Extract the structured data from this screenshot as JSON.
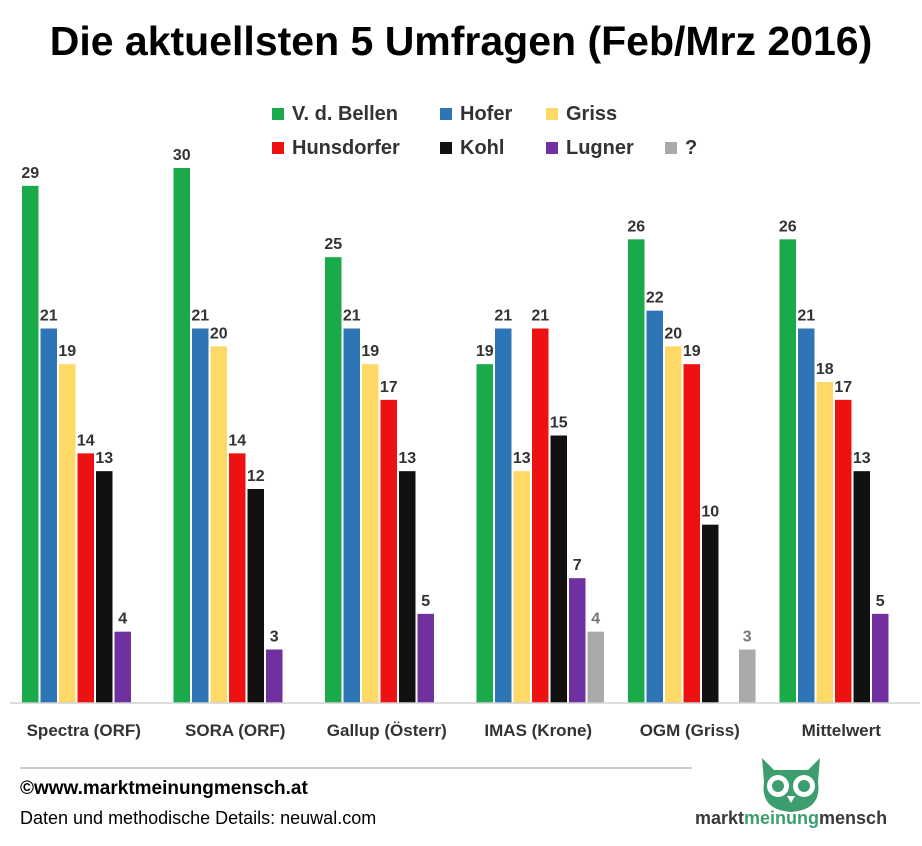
{
  "title": "Die aktuellsten 5 Umfragen (Feb/Mrz 2016)",
  "footer": {
    "copyright": "©www.marktmeinungmensch.at",
    "source": "Daten und methodische Details: neuwal.com"
  },
  "logo": {
    "part1": "markt",
    "part2": "meinung",
    "part3": "mensch",
    "icon": "owl-icon",
    "color": "#3c9e6e"
  },
  "chart_data": {
    "type": "bar",
    "categories": [
      "Spectra (ORF)",
      "SORA (ORF)",
      "Gallup (Österr)",
      "IMAS (Krone)",
      "OGM (Griss)",
      "Mittelwert"
    ],
    "series": [
      {
        "name": "V. d. Bellen",
        "color": "#1aaa4a",
        "values": [
          29,
          30,
          25,
          19,
          26,
          26
        ]
      },
      {
        "name": "Hofer",
        "color": "#2e75b6",
        "values": [
          21,
          21,
          21,
          21,
          22,
          21
        ]
      },
      {
        "name": "Griss",
        "color": "#ffd966",
        "values": [
          19,
          20,
          19,
          13,
          20,
          18
        ]
      },
      {
        "name": "Hunsdorfer",
        "color": "#ee1111",
        "values": [
          14,
          14,
          17,
          21,
          19,
          17
        ]
      },
      {
        "name": "Kohl",
        "color": "#111111",
        "values": [
          13,
          12,
          13,
          15,
          10,
          13
        ]
      },
      {
        "name": "Lugner",
        "color": "#7030a0",
        "values": [
          4,
          3,
          5,
          7,
          null,
          5
        ]
      },
      {
        "name": "?",
        "color": "#aaaaaa",
        "values": [
          null,
          null,
          null,
          4,
          3,
          null
        ]
      }
    ],
    "ylim": [
      0,
      30
    ],
    "legend_position": "top-center",
    "grid": false
  }
}
